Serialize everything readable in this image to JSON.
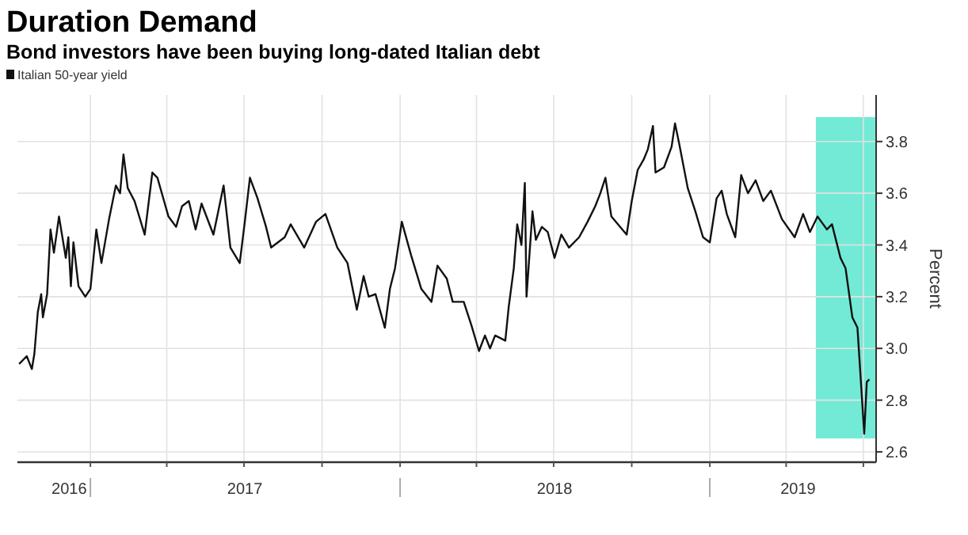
{
  "chart_data": {
    "type": "line",
    "title": "Duration Demand",
    "subtitle": "Bond investors have been buying long-dated Italian debt",
    "ylabel": "Percent",
    "xlim": [
      "2016-10-07",
      "2019-07-16"
    ],
    "ylim": [
      2.56,
      3.98
    ],
    "yticks": [
      {
        "value": 2.6,
        "label": "2.6"
      },
      {
        "value": 2.8,
        "label": "2.8"
      },
      {
        "value": 3.0,
        "label": "3.0"
      },
      {
        "value": 3.2,
        "label": "3.2"
      },
      {
        "value": 3.4,
        "label": "3.4"
      },
      {
        "value": 3.6,
        "label": "3.6"
      },
      {
        "value": 3.8,
        "label": "3.8"
      }
    ],
    "xticks": [
      {
        "value": "2016-12-07",
        "label": "2016"
      },
      {
        "value": "2017-07-02",
        "label": "2017"
      },
      {
        "value": "2018-07-02",
        "label": "2018"
      },
      {
        "value": "2019-04-15",
        "label": "2019"
      },
      {
        "value": "2017-01-01",
        "label": null
      },
      {
        "value": "2017-04-01",
        "label": null
      },
      {
        "value": "2017-07-01",
        "label": null
      },
      {
        "value": "2017-10-01",
        "label": null
      },
      {
        "value": "2018-01-01",
        "label": null
      },
      {
        "value": "2018-04-01",
        "label": null
      },
      {
        "value": "2018-07-01",
        "label": null
      },
      {
        "value": "2018-10-01",
        "label": null
      },
      {
        "value": "2019-01-01",
        "label": null
      },
      {
        "value": "2019-04-01",
        "label": null
      },
      {
        "value": "2019-07-01",
        "label": null
      }
    ],
    "grid": true,
    "legend": "top left",
    "line_style": "solid",
    "bands": [
      {
        "axis": "x",
        "from": "2019-05-06",
        "to": "2019-07-15",
        "color": "#64e8d0"
      }
    ],
    "series": [
      {
        "name": "Italian 50-year yield",
        "color": "#111111",
        "x": [
          "2016-10-09",
          "2016-10-18",
          "2016-10-24",
          "2016-10-27",
          "2016-10-31",
          "2016-11-04",
          "2016-11-06",
          "2016-11-11",
          "2016-11-15",
          "2016-11-19",
          "2016-11-25",
          "2016-12-03",
          "2016-12-06",
          "2016-12-09",
          "2016-12-12",
          "2016-12-18",
          "2016-12-26",
          "2017-01-01",
          "2017-01-08",
          "2017-01-14",
          "2017-01-23",
          "2017-01-31",
          "2017-02-05",
          "2017-02-09",
          "2017-02-14",
          "2017-02-22",
          "2017-03-06",
          "2017-03-15",
          "2017-03-21",
          "2017-04-03",
          "2017-04-12",
          "2017-04-19",
          "2017-04-27",
          "2017-05-05",
          "2017-05-12",
          "2017-05-26",
          "2017-06-07",
          "2017-06-15",
          "2017-06-26",
          "2017-07-02",
          "2017-07-08",
          "2017-07-17",
          "2017-07-27",
          "2017-08-02",
          "2017-08-18",
          "2017-08-25",
          "2017-09-10",
          "2017-09-24",
          "2017-10-05",
          "2017-10-19",
          "2017-10-31",
          "2017-11-11",
          "2017-11-19",
          "2017-11-25",
          "2017-12-03",
          "2017-12-14",
          "2017-12-20",
          "2017-12-26",
          "2018-01-03",
          "2018-01-14",
          "2018-01-26",
          "2018-02-07",
          "2018-02-14",
          "2018-02-25",
          "2018-03-04",
          "2018-03-17",
          "2018-03-26",
          "2018-04-04",
          "2018-04-11",
          "2018-04-17",
          "2018-04-23",
          "2018-05-05",
          "2018-05-09",
          "2018-05-15",
          "2018-05-19",
          "2018-05-24",
          "2018-05-28",
          "2018-05-30",
          "2018-06-06",
          "2018-06-10",
          "2018-06-17",
          "2018-06-24",
          "2018-07-02",
          "2018-07-10",
          "2018-07-19",
          "2018-07-31",
          "2018-08-10",
          "2018-08-19",
          "2018-08-25",
          "2018-08-31",
          "2018-09-07",
          "2018-09-25",
          "2018-10-01",
          "2018-10-08",
          "2018-10-15",
          "2018-10-20",
          "2018-10-26",
          "2018-10-29",
          "2018-11-08",
          "2018-11-17",
          "2018-11-21",
          "2018-11-26",
          "2018-12-06",
          "2018-12-15",
          "2018-12-24",
          "2019-01-01",
          "2019-01-09",
          "2019-01-15",
          "2019-01-21",
          "2019-01-31",
          "2019-02-07",
          "2019-02-15",
          "2019-02-24",
          "2019-03-05",
          "2019-03-14",
          "2019-03-27",
          "2019-04-11",
          "2019-04-21",
          "2019-04-29",
          "2019-05-08",
          "2019-05-19",
          "2019-05-25",
          "2019-06-04",
          "2019-06-10",
          "2019-06-18",
          "2019-06-24",
          "2019-07-02",
          "2019-07-05",
          "2019-07-08"
        ],
        "values": [
          2.94,
          2.97,
          2.92,
          2.98,
          3.14,
          3.21,
          3.12,
          3.21,
          3.46,
          3.37,
          3.51,
          3.35,
          3.43,
          3.24,
          3.41,
          3.24,
          3.2,
          3.23,
          3.46,
          3.33,
          3.5,
          3.63,
          3.6,
          3.75,
          3.62,
          3.57,
          3.44,
          3.68,
          3.66,
          3.51,
          3.47,
          3.55,
          3.57,
          3.46,
          3.56,
          3.44,
          3.63,
          3.39,
          3.33,
          3.49,
          3.66,
          3.58,
          3.47,
          3.39,
          3.43,
          3.48,
          3.39,
          3.49,
          3.52,
          3.39,
          3.33,
          3.15,
          3.28,
          3.2,
          3.21,
          3.08,
          3.23,
          3.31,
          3.49,
          3.36,
          3.23,
          3.18,
          3.32,
          3.27,
          3.18,
          3.18,
          3.09,
          2.99,
          3.05,
          3.0,
          3.05,
          3.03,
          3.16,
          3.31,
          3.48,
          3.4,
          3.64,
          3.2,
          3.53,
          3.42,
          3.47,
          3.45,
          3.35,
          3.44,
          3.39,
          3.43,
          3.49,
          3.55,
          3.6,
          3.66,
          3.51,
          3.44,
          3.57,
          3.69,
          3.73,
          3.77,
          3.86,
          3.68,
          3.7,
          3.78,
          3.87,
          3.79,
          3.62,
          3.53,
          3.43,
          3.41,
          3.58,
          3.61,
          3.52,
          3.43,
          3.67,
          3.6,
          3.65,
          3.57,
          3.61,
          3.5,
          3.43,
          3.52,
          3.45,
          3.51,
          3.46,
          3.48,
          3.35,
          3.31,
          3.12,
          3.08,
          2.67,
          2.87,
          2.88
        ]
      }
    ]
  }
}
